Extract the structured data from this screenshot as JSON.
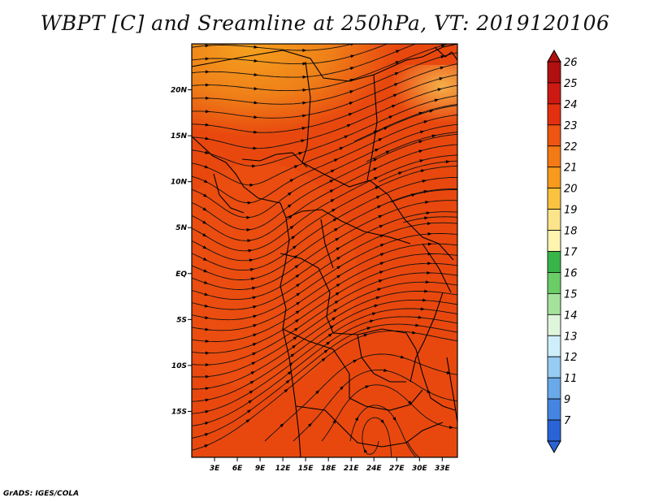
{
  "title": "WBPT [C] and Sreamline at 250hPa, VT: 2019120106",
  "credit": "GrADS: IGES/COLA",
  "map": {
    "lon_range": [
      0,
      35
    ],
    "lat_range": [
      -20,
      25
    ],
    "lon_ticks": [
      "3E",
      "6E",
      "9E",
      "12E",
      "15E",
      "18E",
      "21E",
      "24E",
      "27E",
      "30E",
      "33E"
    ],
    "lat_ticks": [
      "20N",
      "15N",
      "10N",
      "5N",
      "EQ",
      "5S",
      "10S",
      "15S"
    ],
    "field_color_dominant": "#e8480e",
    "field_color_north": "#f08a1a"
  },
  "colorbar": {
    "labels": [
      "26",
      "25",
      "24",
      "23",
      "22",
      "21",
      "20",
      "19",
      "18",
      "17",
      "16",
      "15",
      "14",
      "13",
      "12",
      "11",
      "9",
      "7"
    ],
    "colors": [
      "#b01010",
      "#cc1a12",
      "#e33010",
      "#ee5512",
      "#f47a16",
      "#f79a1d",
      "#f9c340",
      "#fbe48a",
      "#fff4b0",
      "#38b449",
      "#6acd66",
      "#a5e29c",
      "#dff5dc",
      "#cfeefb",
      "#97ccf3",
      "#6aa9ea",
      "#4585e2",
      "#2a63d6"
    ]
  }
}
